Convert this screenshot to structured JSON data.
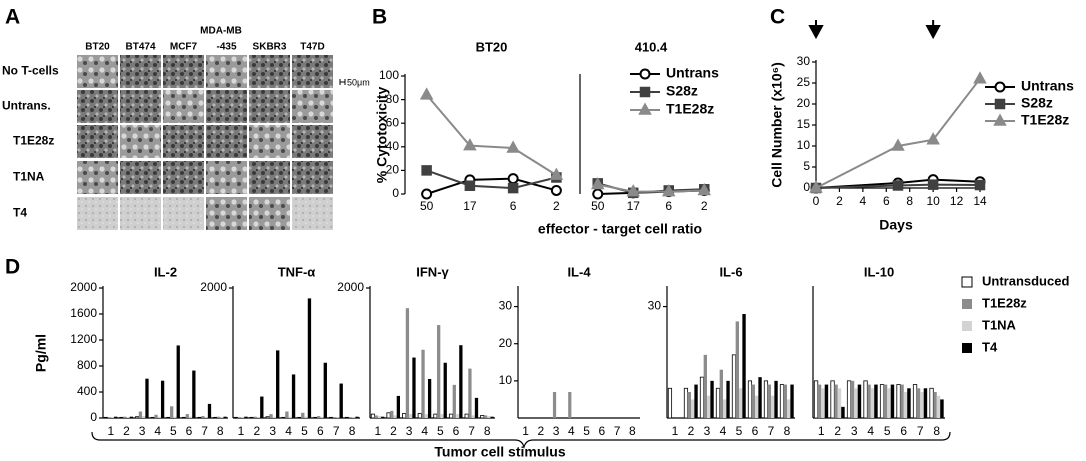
{
  "panel_labels": [
    "A",
    "B",
    "C",
    "D"
  ],
  "panel_a": {
    "group_label": "MDA-MB",
    "columns": [
      "BT20",
      "BT474",
      "MCF7",
      "-435",
      "SKBR3",
      "T47D"
    ],
    "rows": [
      "No T-cells",
      "Untrans.",
      "T1E28z",
      "T1NA",
      "T4"
    ],
    "scale_bar": "50μm"
  },
  "chart_data": [
    {
      "type": "line",
      "title": "BT20",
      "y_label": "% Cytotoxicity",
      "x_label": "effector - target cell ratio",
      "categories": [
        "50",
        "17",
        "6",
        "2"
      ],
      "ylim": [
        0,
        100
      ],
      "yticks": [
        0,
        20,
        40,
        60,
        80,
        100
      ],
      "series": [
        {
          "name": "Untrans",
          "color": "#000000",
          "marker": "circle",
          "values": [
            0,
            12,
            13,
            3
          ]
        },
        {
          "name": "S28z",
          "color": "#404040",
          "marker": "square",
          "values": [
            20,
            7,
            5,
            14
          ]
        },
        {
          "name": "T1E28z",
          "color": "#8a8a8a",
          "marker": "triangle",
          "values": [
            84,
            41,
            39,
            16
          ]
        }
      ]
    },
    {
      "type": "line",
      "title": "410.4",
      "categories": [
        "50",
        "17",
        "6",
        "2"
      ],
      "ylim": [
        0,
        100
      ],
      "series": [
        {
          "color": "#000000",
          "marker": "circle",
          "values": [
            0,
            1,
            2,
            3
          ]
        },
        {
          "color": "#404040",
          "marker": "square",
          "values": [
            9,
            1,
            3,
            4
          ]
        },
        {
          "color": "#8a8a8a",
          "marker": "triangle",
          "values": [
            8,
            2,
            2,
            3
          ]
        }
      ]
    },
    {
      "type": "line",
      "x_label": "Days",
      "y_label": "Cell Number (x10⁶)",
      "x": [
        0,
        7,
        10,
        14
      ],
      "xlim": [
        0,
        14
      ],
      "xticks": [
        0,
        2,
        4,
        6,
        8,
        10,
        12,
        14
      ],
      "ylim": [
        0,
        30
      ],
      "yticks": [
        0,
        5,
        10,
        15,
        20,
        25,
        30
      ],
      "arrows_x": [
        0,
        10
      ],
      "series": [
        {
          "name": "Untrans",
          "color": "#000000",
          "marker": "circle",
          "values": [
            0,
            1.2,
            2,
            1.5
          ]
        },
        {
          "name": "S28z",
          "color": "#404040",
          "marker": "square",
          "values": [
            0,
            0.6,
            0.8,
            0.7
          ]
        },
        {
          "name": "T1E28z",
          "color": "#8a8a8a",
          "marker": "triangle",
          "values": [
            0,
            10,
            11.5,
            26
          ]
        }
      ]
    },
    {
      "type": "bar",
      "title": "IL-2",
      "y_label": "Pg/ml",
      "x_label": "Tumor cell stimulus",
      "categories": [
        "1",
        "2",
        "3",
        "4",
        "5",
        "6",
        "7",
        "8"
      ],
      "ylim": [
        0,
        2000
      ],
      "yticks": [
        0,
        400,
        800,
        1200,
        1600,
        2000
      ],
      "series": [
        {
          "name": "Untransduced",
          "color": "#ffffff",
          "label_color": "#000000",
          "values": [
            10,
            10,
            20,
            10,
            10,
            10,
            10,
            10
          ]
        },
        {
          "name": "T1E28z",
          "color": "#8c8c8c",
          "label_color": "#8c8c8c",
          "values": [
            10,
            20,
            100,
            50,
            180,
            60,
            30,
            20
          ]
        },
        {
          "name": "T1NA",
          "color": "#d3d3d3",
          "label_color": "#c8c8c8",
          "values": [
            10,
            10,
            30,
            20,
            20,
            20,
            10,
            10
          ]
        },
        {
          "name": "T4",
          "color": "#000000",
          "label_color": "#000000",
          "values": [
            20,
            20,
            605,
            574,
            1116,
            730,
            217,
            20
          ]
        }
      ]
    },
    {
      "type": "bar",
      "title": "TNF-α",
      "categories": [
        "1",
        "2",
        "3",
        "4",
        "5",
        "6",
        "7",
        "8"
      ],
      "ylim": [
        0,
        2000
      ],
      "yticks": [
        2000
      ],
      "series": [
        {
          "color": "#ffffff",
          "values": [
            10,
            10,
            20,
            10,
            10,
            10,
            10,
            10
          ]
        },
        {
          "color": "#8c8c8c",
          "values": [
            10,
            20,
            60,
            100,
            80,
            30,
            10,
            10
          ]
        },
        {
          "color": "#d3d3d3",
          "values": [
            10,
            10,
            20,
            20,
            20,
            10,
            10,
            10
          ]
        },
        {
          "color": "#000000",
          "values": [
            20,
            330,
            1040,
            670,
            1840,
            850,
            530,
            20
          ]
        }
      ]
    },
    {
      "type": "bar",
      "title": "IFN-γ",
      "categories": [
        "1",
        "2",
        "3",
        "4",
        "5",
        "6",
        "7",
        "8"
      ],
      "ylim": [
        0,
        2000
      ],
      "yticks": [
        2000
      ],
      "series": [
        {
          "color": "#ffffff",
          "values": [
            60,
            80,
            70,
            70,
            60,
            60,
            60,
            40
          ]
        },
        {
          "color": "#8c8c8c",
          "values": [
            40,
            110,
            1690,
            1050,
            1430,
            510,
            760,
            40
          ]
        },
        {
          "color": "#d3d3d3",
          "values": [
            30,
            40,
            60,
            60,
            60,
            60,
            40,
            30
          ]
        },
        {
          "color": "#000000",
          "values": [
            20,
            340,
            930,
            600,
            850,
            1120,
            310,
            20
          ]
        }
      ]
    },
    {
      "type": "bar",
      "title": "IL-4",
      "categories": [
        "1",
        "2",
        "3",
        "4",
        "5",
        "6",
        "7",
        "8"
      ],
      "ylim": [
        0,
        35
      ],
      "yticks": [
        10,
        20,
        30
      ],
      "series": [
        {
          "color": "#ffffff",
          "values": [
            0,
            0,
            0,
            0,
            0,
            0,
            0,
            0
          ]
        },
        {
          "color": "#8c8c8c",
          "values": [
            0,
            0,
            7,
            7,
            0,
            0,
            0,
            0
          ]
        },
        {
          "color": "#d3d3d3",
          "values": [
            0,
            0,
            0,
            0,
            0,
            0,
            0,
            0
          ]
        },
        {
          "color": "#000000",
          "values": [
            0,
            0,
            0,
            0,
            0,
            0,
            0,
            0
          ]
        }
      ]
    },
    {
      "type": "bar",
      "title": "IL-6",
      "categories": [
        "1",
        "2",
        "3",
        "4",
        "5",
        "6",
        "7",
        "8"
      ],
      "ylim": [
        0,
        35
      ],
      "yticks": [
        30
      ],
      "series": [
        {
          "color": "#ffffff",
          "values": [
            8,
            8,
            11,
            8,
            17,
            10,
            10,
            9
          ]
        },
        {
          "color": "#8c8c8c",
          "values": [
            0,
            7,
            17,
            13,
            26,
            9,
            9,
            9
          ]
        },
        {
          "color": "#d3d3d3",
          "values": [
            0,
            5,
            6,
            5,
            8,
            6,
            6,
            5
          ]
        },
        {
          "color": "#000000",
          "values": [
            0,
            9,
            10,
            10,
            28,
            11,
            10,
            9
          ]
        }
      ]
    },
    {
      "type": "bar",
      "title": "IL-10",
      "categories": [
        "1",
        "2",
        "3",
        "4",
        "5",
        "6",
        "7",
        "8"
      ],
      "ylim": [
        0,
        35
      ],
      "series": [
        {
          "color": "#ffffff",
          "values": [
            10,
            10,
            10,
            10,
            9,
            9,
            9,
            8
          ]
        },
        {
          "color": "#8c8c8c",
          "values": [
            9,
            9,
            10,
            9,
            9,
            9,
            8,
            7
          ]
        },
        {
          "color": "#d3d3d3",
          "values": [
            8,
            8,
            8,
            8,
            8,
            7,
            7,
            6
          ]
        },
        {
          "color": "#000000",
          "values": [
            9,
            3,
            9,
            9,
            9,
            8,
            8,
            5
          ]
        }
      ]
    }
  ]
}
